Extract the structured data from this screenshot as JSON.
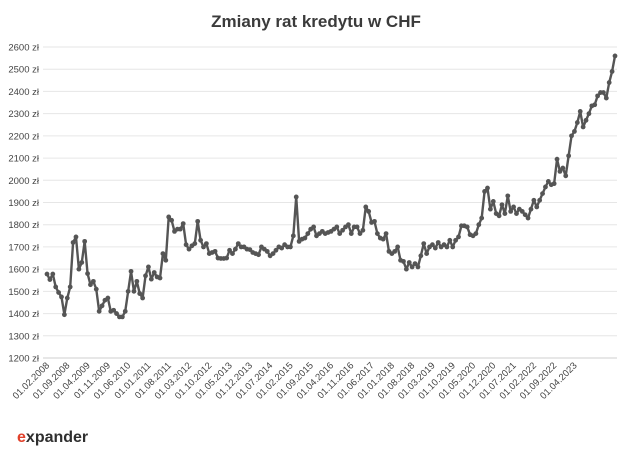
{
  "brand": {
    "logo_text": "expander",
    "logo_accent_color": "#e2412b",
    "logo_text_color": "#2f2f2f"
  },
  "chart_data": {
    "type": "line",
    "title": "Zmiany rat kredytu w CHF",
    "xlabel": "",
    "ylabel": "",
    "ylim": [
      1200,
      2600
    ],
    "y_ticks": [
      1200,
      1300,
      1400,
      1500,
      1600,
      1700,
      1800,
      1900,
      2000,
      2100,
      2200,
      2300,
      2400,
      2500,
      2600
    ],
    "y_tick_labels": [
      "1200 zł",
      "1300 zł",
      "1400 zł",
      "1500 zł",
      "1600 zł",
      "1700 zł",
      "1800 zł",
      "1900 zł",
      "2000 zł",
      "2100 zł",
      "2200 zł",
      "2300 zł",
      "2400 zł",
      "2500 zł",
      "2600 zł"
    ],
    "x_tick_labels": [
      "01.02.2008",
      "01.09.2008",
      "01.04.2009",
      "01.11.2009",
      "01.06.2010",
      "01.01.2011",
      "01.08.2011",
      "01.03.2012",
      "01.10.2012",
      "01.05.2013",
      "01.12.2013",
      "01.07.2014",
      "01.02.2015",
      "01.09.2015",
      "01.04.2016",
      "01.11.2016",
      "01.06.2017",
      "01.01.2018",
      "01.08.2018",
      "01.03.2019",
      "01.10.2019",
      "01.05.2020",
      "01.12.2020",
      "01.07.2021",
      "01.02.2022",
      "01.09.2022",
      "01.04.2023"
    ],
    "grid": true,
    "line_color": "#555555",
    "series": [
      {
        "values": [
          1578,
          1553,
          1578,
          1520,
          1495,
          1475,
          1395,
          1470,
          1520,
          1720,
          1745,
          1600,
          1630,
          1725,
          1580,
          1530,
          1545,
          1510,
          1410,
          1435,
          1460,
          1470,
          1410,
          1415,
          1400,
          1385,
          1385,
          1410,
          1500,
          1590,
          1500,
          1545,
          1490,
          1470,
          1570,
          1610,
          1555,
          1585,
          1565,
          1560,
          1670,
          1640,
          1835,
          1820,
          1770,
          1780,
          1780,
          1805,
          1710,
          1690,
          1705,
          1715,
          1815,
          1730,
          1700,
          1715,
          1670,
          1675,
          1680,
          1650,
          1648,
          1648,
          1650,
          1685,
          1670,
          1690,
          1715,
          1700,
          1700,
          1690,
          1688,
          1675,
          1670,
          1665,
          1700,
          1690,
          1680,
          1660,
          1670,
          1685,
          1700,
          1695,
          1710,
          1700,
          1700,
          1750,
          1925,
          1725,
          1735,
          1740,
          1760,
          1780,
          1790,
          1750,
          1760,
          1770,
          1760,
          1765,
          1770,
          1780,
          1790,
          1760,
          1775,
          1790,
          1800,
          1760,
          1790,
          1790,
          1760,
          1775,
          1880,
          1860,
          1810,
          1815,
          1760,
          1740,
          1735,
          1760,
          1680,
          1670,
          1680,
          1700,
          1640,
          1635,
          1600,
          1630,
          1610,
          1625,
          1610,
          1660,
          1715,
          1670,
          1700,
          1710,
          1695,
          1720,
          1700,
          1710,
          1700,
          1730,
          1700,
          1730,
          1745,
          1795,
          1795,
          1790,
          1755,
          1750,
          1760,
          1800,
          1830,
          1950,
          1965,
          1870,
          1905,
          1850,
          1840,
          1890,
          1850,
          1930,
          1860,
          1880,
          1850,
          1870,
          1860,
          1845,
          1830,
          1870,
          1910,
          1880,
          1910,
          1940,
          1970,
          1995,
          1980,
          1985,
          2095,
          2040,
          2055,
          2020,
          2110,
          2200,
          2220,
          2260,
          2310,
          2240,
          2270,
          2300,
          2335,
          2340,
          2380,
          2395,
          2395,
          2370,
          2440,
          2490,
          2560
        ]
      }
    ]
  }
}
